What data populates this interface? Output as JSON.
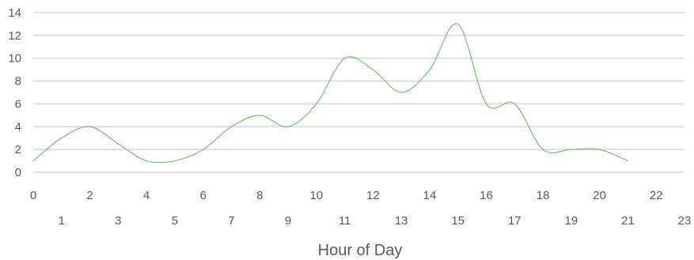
{
  "colors": {
    "series": "#5fb35f",
    "grid": "#d9d9d9",
    "text": "#595959"
  },
  "chart_data": {
    "type": "line",
    "title": "",
    "xlabel": "Hour of Day",
    "ylabel": "",
    "ylim": [
      0,
      14
    ],
    "xlim": [
      0,
      23
    ],
    "grid": true,
    "legend": "none",
    "smooth": true,
    "yticks": [
      0,
      2,
      4,
      6,
      8,
      10,
      12,
      14
    ],
    "xticks_even": [
      0,
      2,
      4,
      6,
      8,
      10,
      12,
      14,
      16,
      18,
      20,
      22
    ],
    "xticks_odd": [
      1,
      3,
      5,
      7,
      9,
      11,
      13,
      15,
      17,
      19,
      21,
      23
    ],
    "series": [
      {
        "x": [
          0,
          1,
          2,
          3,
          4,
          5,
          6,
          7,
          8,
          9,
          10,
          11,
          12,
          13,
          14,
          15,
          16,
          17,
          18,
          19,
          20,
          21
        ],
        "values": [
          1,
          3,
          4,
          2.5,
          1,
          1,
          2,
          4,
          5,
          4,
          6,
          10,
          9,
          7,
          9,
          13,
          6,
          6,
          2,
          2,
          2,
          1
        ]
      }
    ]
  }
}
